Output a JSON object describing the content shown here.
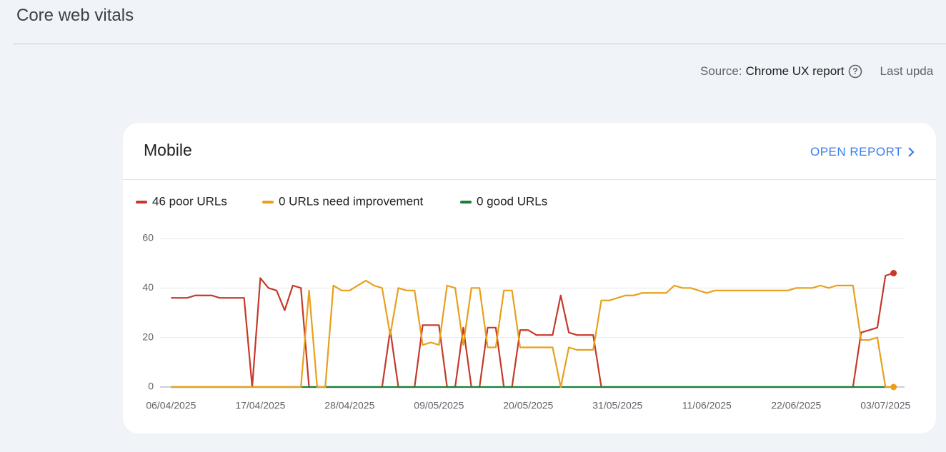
{
  "header": {
    "title": "Core web vitals"
  },
  "source": {
    "label": "Source:",
    "link": "Chrome UX report",
    "updated": "Last upda"
  },
  "card": {
    "title": "Mobile",
    "action": "OPEN REPORT"
  },
  "chart_data": {
    "type": "line",
    "x": [
      "06/04/2025",
      "07/04/2025",
      "08/04/2025",
      "09/04/2025",
      "10/04/2025",
      "11/04/2025",
      "12/04/2025",
      "13/04/2025",
      "14/04/2025",
      "15/04/2025",
      "16/04/2025",
      "17/04/2025",
      "18/04/2025",
      "19/04/2025",
      "20/04/2025",
      "21/04/2025",
      "22/04/2025",
      "23/04/2025",
      "24/04/2025",
      "25/04/2025",
      "26/04/2025",
      "27/04/2025",
      "28/04/2025",
      "29/04/2025",
      "30/04/2025",
      "01/05/2025",
      "02/05/2025",
      "03/05/2025",
      "04/05/2025",
      "05/05/2025",
      "06/05/2025",
      "07/05/2025",
      "08/05/2025",
      "09/05/2025",
      "10/05/2025",
      "11/05/2025",
      "12/05/2025",
      "13/05/2025",
      "14/05/2025",
      "15/05/2025",
      "16/05/2025",
      "17/05/2025",
      "18/05/2025",
      "19/05/2025",
      "20/05/2025",
      "21/05/2025",
      "22/05/2025",
      "23/05/2025",
      "24/05/2025",
      "25/05/2025",
      "26/05/2025",
      "27/05/2025",
      "28/05/2025",
      "29/05/2025",
      "30/05/2025",
      "31/05/2025",
      "01/06/2025",
      "02/06/2025",
      "03/06/2025",
      "04/06/2025",
      "05/06/2025",
      "06/06/2025",
      "07/06/2025",
      "08/06/2025",
      "09/06/2025",
      "10/06/2025",
      "11/06/2025",
      "12/06/2025",
      "13/06/2025",
      "14/06/2025",
      "15/06/2025",
      "16/06/2025",
      "17/06/2025",
      "18/06/2025",
      "19/06/2025",
      "20/06/2025",
      "21/06/2025",
      "22/06/2025",
      "23/06/2025",
      "24/06/2025",
      "25/06/2025",
      "26/06/2025",
      "27/06/2025",
      "28/06/2025",
      "29/06/2025",
      "30/06/2025",
      "01/07/2025",
      "02/07/2025",
      "03/07/2025",
      "04/07/2025"
    ],
    "series": [
      {
        "name": "46 poor URLs",
        "color": "#c5392a",
        "values": [
          36,
          36,
          36,
          37,
          37,
          37,
          36,
          36,
          36,
          36,
          0,
          44,
          40,
          39,
          31,
          41,
          40,
          0,
          0,
          0,
          0,
          0,
          0,
          0,
          0,
          0,
          0,
          23,
          0,
          0,
          0,
          25,
          25,
          25,
          0,
          0,
          24,
          0,
          0,
          24,
          24,
          0,
          0,
          23,
          23,
          21,
          21,
          21,
          37,
          22,
          21,
          21,
          21,
          0,
          0,
          0,
          0,
          0,
          0,
          0,
          0,
          0,
          0,
          0,
          0,
          0,
          0,
          0,
          0,
          0,
          0,
          0,
          0,
          0,
          0,
          0,
          0,
          0,
          0,
          0,
          0,
          0,
          0,
          0,
          0,
          22,
          23,
          24,
          45,
          46
        ]
      },
      {
        "name": "0 URLs need improvement",
        "color": "#e8a01b",
        "values": [
          0,
          0,
          0,
          0,
          0,
          0,
          0,
          0,
          0,
          0,
          0,
          0,
          0,
          0,
          0,
          0,
          0,
          39,
          0,
          0,
          41,
          39,
          39,
          41,
          43,
          41,
          40,
          21,
          40,
          39,
          39,
          17,
          18,
          17,
          41,
          40,
          17,
          40,
          40,
          16,
          16,
          39,
          39,
          16,
          16,
          16,
          16,
          16,
          0,
          16,
          15,
          15,
          15,
          35,
          35,
          36,
          37,
          37,
          38,
          38,
          38,
          38,
          41,
          40,
          40,
          39,
          38,
          39,
          39,
          39,
          39,
          39,
          39,
          39,
          39,
          39,
          39,
          40,
          40,
          40,
          41,
          40,
          41,
          41,
          41,
          19,
          19,
          20,
          0,
          0
        ]
      },
      {
        "name": "0 good URLs",
        "color": "#188038",
        "values": [
          0,
          0,
          0,
          0,
          0,
          0,
          0,
          0,
          0,
          0,
          0,
          0,
          0,
          0,
          0,
          0,
          0,
          0,
          0,
          0,
          0,
          0,
          0,
          0,
          0,
          0,
          0,
          0,
          0,
          0,
          0,
          0,
          0,
          0,
          0,
          0,
          0,
          0,
          0,
          0,
          0,
          0,
          0,
          0,
          0,
          0,
          0,
          0,
          0,
          0,
          0,
          0,
          0,
          0,
          0,
          0,
          0,
          0,
          0,
          0,
          0,
          0,
          0,
          0,
          0,
          0,
          0,
          0,
          0,
          0,
          0,
          0,
          0,
          0,
          0,
          0,
          0,
          0,
          0,
          0,
          0,
          0,
          0,
          0,
          0,
          0,
          0,
          0,
          0,
          0
        ]
      }
    ],
    "xlim": [
      "05/04/2025",
      "05/07/2025"
    ],
    "xticks": [
      "06/04/2025",
      "17/04/2025",
      "28/04/2025",
      "09/05/2025",
      "20/05/2025",
      "31/05/2025",
      "11/06/2025",
      "22/06/2025",
      "03/07/2025"
    ],
    "ylim": [
      0,
      60
    ],
    "yticks": [
      0,
      20,
      40,
      60
    ],
    "grid": true
  }
}
